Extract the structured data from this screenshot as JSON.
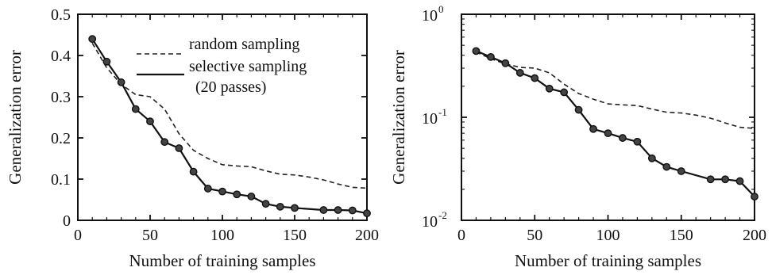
{
  "chart_data": [
    {
      "type": "line",
      "scale": "linear",
      "xlabel": "Number of training samples",
      "ylabel": "Generalization error",
      "xlim": [
        0,
        200
      ],
      "ylim": [
        0,
        0.5
      ],
      "xticks": [
        0,
        50,
        100,
        150,
        200
      ],
      "xtick_labels": [
        "0",
        "50",
        "100",
        "150",
        "200"
      ],
      "yticks": [
        0,
        0.1,
        0.2,
        0.3,
        0.4,
        0.5
      ],
      "ytick_labels": [
        "0",
        "0.1",
        "0.2",
        "0.3",
        "0.4",
        "0.5"
      ],
      "grid": false,
      "legend_position": "top-right",
      "legend": [
        "random sampling",
        "selective sampling",
        "(20 passes)"
      ],
      "series": [
        {
          "name": "random sampling",
          "style": "dashed",
          "x": [
            10,
            20,
            30,
            40,
            50,
            60,
            70,
            80,
            90,
            100,
            110,
            120,
            130,
            140,
            150,
            160,
            170,
            180,
            190,
            200
          ],
          "y": [
            0.43,
            0.37,
            0.33,
            0.305,
            0.3,
            0.27,
            0.21,
            0.17,
            0.15,
            0.135,
            0.132,
            0.13,
            0.12,
            0.112,
            0.11,
            0.105,
            0.098,
            0.088,
            0.08,
            0.078
          ]
        },
        {
          "name": "selective sampling",
          "style": "solid-markers",
          "x": [
            10,
            20,
            30,
            40,
            50,
            60,
            70,
            80,
            90,
            100,
            110,
            120,
            130,
            140,
            150,
            170,
            180,
            190,
            200
          ],
          "y": [
            0.44,
            0.385,
            0.335,
            0.27,
            0.24,
            0.19,
            0.175,
            0.118,
            0.077,
            0.07,
            0.063,
            0.058,
            0.04,
            0.033,
            0.03,
            0.025,
            0.025,
            0.024,
            0.017
          ]
        }
      ]
    },
    {
      "type": "line",
      "scale": "log",
      "xlabel": "Number of training samples",
      "ylabel": "Generalization error",
      "xlim": [
        0,
        200
      ],
      "ylim": [
        0.01,
        1
      ],
      "xticks": [
        0,
        50,
        100,
        150,
        200
      ],
      "xtick_labels": [
        "0",
        "50",
        "100",
        "150",
        "200"
      ],
      "yticks": [
        0.01,
        0.1,
        1
      ],
      "ytick_labels": [
        {
          "base": "10",
          "exp": "-2"
        },
        {
          "base": "10",
          "exp": "-1"
        },
        {
          "base": "10",
          "exp": "0"
        }
      ],
      "grid": false,
      "series": [
        {
          "name": "random sampling",
          "style": "dashed",
          "x": [
            10,
            20,
            30,
            40,
            50,
            60,
            70,
            80,
            90,
            100,
            110,
            120,
            130,
            140,
            150,
            160,
            170,
            180,
            190,
            200
          ],
          "y": [
            0.43,
            0.37,
            0.33,
            0.305,
            0.3,
            0.27,
            0.21,
            0.17,
            0.15,
            0.135,
            0.132,
            0.13,
            0.12,
            0.112,
            0.11,
            0.105,
            0.098,
            0.088,
            0.08,
            0.078
          ]
        },
        {
          "name": "selective sampling",
          "style": "solid-markers",
          "x": [
            10,
            20,
            30,
            40,
            50,
            60,
            70,
            80,
            90,
            100,
            110,
            120,
            130,
            140,
            150,
            170,
            180,
            190,
            200
          ],
          "y": [
            0.44,
            0.385,
            0.335,
            0.27,
            0.24,
            0.19,
            0.175,
            0.118,
            0.077,
            0.07,
            0.063,
            0.058,
            0.04,
            0.033,
            0.03,
            0.025,
            0.025,
            0.024,
            0.017
          ]
        }
      ]
    }
  ]
}
